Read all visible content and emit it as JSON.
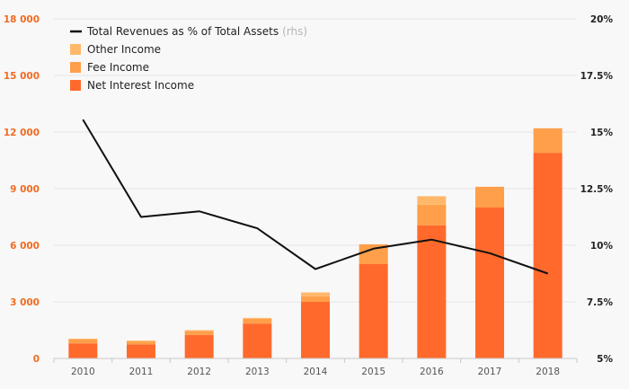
{
  "chart_data": {
    "type": "bar",
    "categories": [
      "2010",
      "2011",
      "2012",
      "2013",
      "2014",
      "2015",
      "2016",
      "2017",
      "2018"
    ],
    "series": [
      {
        "name": "Net Interest Income",
        "type": "stacked-bar",
        "axis": "left",
        "color": "#ff6a2c",
        "values": [
          800,
          750,
          1250,
          1850,
          3000,
          5000,
          7050,
          8000,
          10900
        ]
      },
      {
        "name": "Fee Income",
        "type": "stacked-bar",
        "axis": "left",
        "color": "#ff9f4a",
        "values": [
          200,
          150,
          200,
          250,
          300,
          1050,
          1100,
          1100,
          1300
        ]
      },
      {
        "name": "Other Income",
        "type": "stacked-bar",
        "axis": "left",
        "color": "#ffb86a",
        "values": [
          50,
          50,
          50,
          50,
          200,
          0,
          450,
          0,
          0
        ]
      },
      {
        "name": "Total Revenues as % of Total Assets",
        "name_suffix": "(rhs)",
        "type": "line",
        "axis": "right",
        "color": "#111111",
        "values": [
          15.55,
          11.25,
          11.5,
          10.75,
          8.95,
          9.85,
          10.25,
          9.65,
          8.75
        ]
      }
    ],
    "y_left": {
      "range": [
        0,
        18000
      ],
      "ticks": [
        0,
        3000,
        6000,
        9000,
        12000,
        15000,
        18000
      ],
      "tick_labels": [
        "0",
        "3 000",
        "6 000",
        "9 000",
        "12 000",
        "15 000",
        "18 000"
      ],
      "tick_color": "#f26b21"
    },
    "y_right": {
      "range": [
        5,
        20
      ],
      "ticks": [
        5,
        7.5,
        10,
        12.5,
        15,
        17.5,
        20
      ],
      "tick_labels": [
        "5%",
        "7.5%",
        "10%",
        "12.5%",
        "15%",
        "17.5%",
        "20%"
      ],
      "tick_color": "#222222"
    },
    "title": "",
    "xlabel": "",
    "ylabel": "",
    "grid": true,
    "legend_position": "top-left",
    "legend": [
      {
        "label": "Total Revenues as % of Total Assets",
        "suffix": "(rhs)",
        "marker": "line",
        "color": "#111111"
      },
      {
        "label": "Other Income",
        "marker": "square",
        "color": "#ffb86a"
      },
      {
        "label": "Fee Income",
        "marker": "square",
        "color": "#ff9f4a"
      },
      {
        "label": "Net Interest Income",
        "marker": "square",
        "color": "#ff6a2c"
      }
    ]
  }
}
